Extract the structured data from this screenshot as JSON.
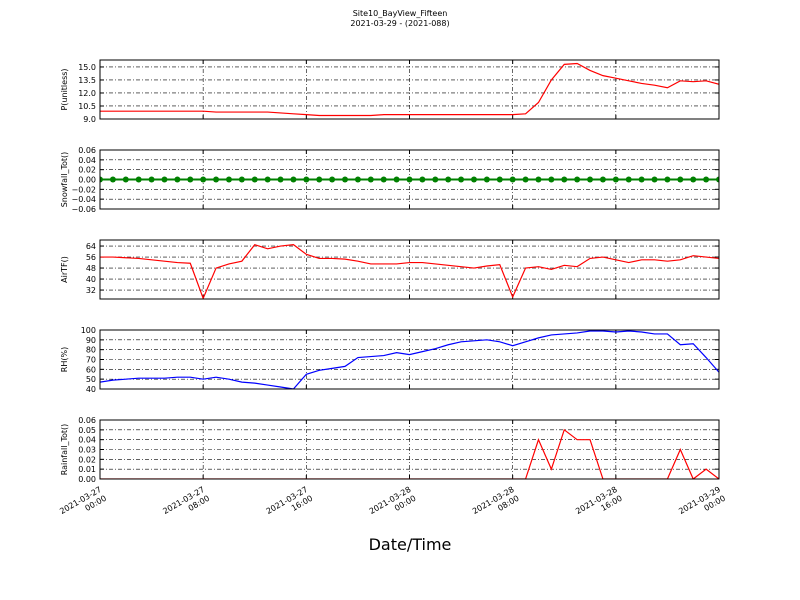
{
  "chart_data": [
    {
      "type": "line",
      "title": "Site10_BayView_Fifteen",
      "subtitle": "2021-03-29 - (2021-088)",
      "ylabel": "P(unitless)",
      "grid": true,
      "x": [
        "2021-03-27 00:00",
        "2021-03-27 01:00",
        "2021-03-27 02:00",
        "2021-03-27 03:00",
        "2021-03-27 04:00",
        "2021-03-27 05:00",
        "2021-03-27 06:00",
        "2021-03-27 07:00",
        "2021-03-27 08:00",
        "2021-03-27 09:00",
        "2021-03-27 10:00",
        "2021-03-27 11:00",
        "2021-03-27 12:00",
        "2021-03-27 13:00",
        "2021-03-27 14:00",
        "2021-03-27 15:00",
        "2021-03-27 16:00",
        "2021-03-27 17:00",
        "2021-03-27 18:00",
        "2021-03-27 19:00",
        "2021-03-27 20:00",
        "2021-03-27 21:00",
        "2021-03-27 22:00",
        "2021-03-27 23:00",
        "2021-03-28 00:00",
        "2021-03-28 01:00",
        "2021-03-28 02:00",
        "2021-03-28 03:00",
        "2021-03-28 04:00",
        "2021-03-28 05:00",
        "2021-03-28 06:00",
        "2021-03-28 07:00",
        "2021-03-28 08:00",
        "2021-03-28 09:00",
        "2021-03-28 10:00",
        "2021-03-28 11:00",
        "2021-03-28 12:00",
        "2021-03-28 13:00",
        "2021-03-28 14:00",
        "2021-03-28 15:00",
        "2021-03-28 16:00",
        "2021-03-28 17:00",
        "2021-03-28 18:00",
        "2021-03-28 19:00",
        "2021-03-28 20:00",
        "2021-03-28 21:00",
        "2021-03-28 22:00",
        "2021-03-28 23:00",
        "2021-03-29 00:00"
      ],
      "series": [
        {
          "color": "#ff0000",
          "values": [
            9.9,
            9.9,
            9.9,
            9.9,
            9.9,
            9.9,
            9.9,
            9.9,
            9.9,
            9.8,
            9.8,
            9.8,
            9.8,
            9.8,
            9.7,
            9.6,
            9.5,
            9.4,
            9.4,
            9.4,
            9.4,
            9.4,
            9.5,
            9.5,
            9.5,
            9.5,
            9.5,
            9.5,
            9.5,
            9.5,
            9.5,
            9.5,
            9.5,
            9.6,
            10.9,
            13.5,
            15.3,
            15.4,
            14.6,
            14.0,
            13.7,
            13.4,
            13.1,
            12.9,
            12.6,
            13.4,
            13.3,
            13.4,
            13.0
          ]
        }
      ],
      "xlim": [
        "2021-03-27 00:00",
        "2021-03-29 00:00"
      ],
      "xticks": [
        "2021-03-27 00:00",
        "2021-03-27 08:00",
        "2021-03-27 16:00",
        "2021-03-28 00:00",
        "2021-03-28 08:00",
        "2021-03-28 16:00",
        "2021-03-29 00:00"
      ],
      "ylim": [
        9,
        15.8
      ],
      "yticks": [
        {
          "value": 9,
          "label": "9.0"
        },
        10.5,
        {
          "value": 12,
          "label": "12.0"
        },
        13.5,
        {
          "value": 15,
          "label": "15.0"
        }
      ]
    },
    {
      "type": "line",
      "ylabel": "Snowfall_Tot()",
      "grid": true,
      "markers": true,
      "x": [
        "2021-03-27 00:00",
        "2021-03-27 01:00",
        "2021-03-27 02:00",
        "2021-03-27 03:00",
        "2021-03-27 04:00",
        "2021-03-27 05:00",
        "2021-03-27 06:00",
        "2021-03-27 07:00",
        "2021-03-27 08:00",
        "2021-03-27 09:00",
        "2021-03-27 10:00",
        "2021-03-27 11:00",
        "2021-03-27 12:00",
        "2021-03-27 13:00",
        "2021-03-27 14:00",
        "2021-03-27 15:00",
        "2021-03-27 16:00",
        "2021-03-27 17:00",
        "2021-03-27 18:00",
        "2021-03-27 19:00",
        "2021-03-27 20:00",
        "2021-03-27 21:00",
        "2021-03-27 22:00",
        "2021-03-27 23:00",
        "2021-03-28 00:00",
        "2021-03-28 01:00",
        "2021-03-28 02:00",
        "2021-03-28 03:00",
        "2021-03-28 04:00",
        "2021-03-28 05:00",
        "2021-03-28 06:00",
        "2021-03-28 07:00",
        "2021-03-28 08:00",
        "2021-03-28 09:00",
        "2021-03-28 10:00",
        "2021-03-28 11:00",
        "2021-03-28 12:00",
        "2021-03-28 13:00",
        "2021-03-28 14:00",
        "2021-03-28 15:00",
        "2021-03-28 16:00",
        "2021-03-28 17:00",
        "2021-03-28 18:00",
        "2021-03-28 19:00",
        "2021-03-28 20:00",
        "2021-03-28 21:00",
        "2021-03-28 22:00",
        "2021-03-28 23:00",
        "2021-03-29 00:00"
      ],
      "series": [
        {
          "color": "#008000",
          "values": [
            0,
            0,
            0,
            0,
            0,
            0,
            0,
            0,
            0,
            0,
            0,
            0,
            0,
            0,
            0,
            0,
            0,
            0,
            0,
            0,
            0,
            0,
            0,
            0,
            0,
            0,
            0,
            0,
            0,
            0,
            0,
            0,
            0,
            0,
            0,
            0,
            0,
            0,
            0,
            0,
            0,
            0,
            0,
            0,
            0,
            0,
            0,
            0,
            0
          ]
        }
      ],
      "xlim": [
        "2021-03-27 00:00",
        "2021-03-29 00:00"
      ],
      "xticks": [
        "2021-03-27 00:00",
        "2021-03-27 08:00",
        "2021-03-27 16:00",
        "2021-03-28 00:00",
        "2021-03-28 08:00",
        "2021-03-28 16:00",
        "2021-03-29 00:00"
      ],
      "ylim": [
        -0.06,
        0.06
      ],
      "yticks": [
        {
          "value": -0.06,
          "label": "−0.06"
        },
        {
          "value": -0.04,
          "label": "−0.04"
        },
        {
          "value": -0.02,
          "label": "−0.02"
        },
        {
          "value": 0,
          "label": "0.00"
        },
        0.02,
        0.04,
        0.06
      ]
    },
    {
      "type": "line",
      "ylabel": "AirTF()",
      "grid": true,
      "x": [
        "2021-03-27 00:00",
        "2021-03-27 01:00",
        "2021-03-27 02:00",
        "2021-03-27 03:00",
        "2021-03-27 04:00",
        "2021-03-27 05:00",
        "2021-03-27 06:00",
        "2021-03-27 07:00",
        "2021-03-27 08:00",
        "2021-03-27 09:00",
        "2021-03-27 10:00",
        "2021-03-27 11:00",
        "2021-03-27 12:00",
        "2021-03-27 13:00",
        "2021-03-27 14:00",
        "2021-03-27 15:00",
        "2021-03-27 16:00",
        "2021-03-27 17:00",
        "2021-03-27 18:00",
        "2021-03-27 19:00",
        "2021-03-27 20:00",
        "2021-03-27 21:00",
        "2021-03-27 22:00",
        "2021-03-27 23:00",
        "2021-03-28 00:00",
        "2021-03-28 01:00",
        "2021-03-28 02:00",
        "2021-03-28 03:00",
        "2021-03-28 04:00",
        "2021-03-28 05:00",
        "2021-03-28 06:00",
        "2021-03-28 07:00",
        "2021-03-28 08:00",
        "2021-03-28 09:00",
        "2021-03-28 10:00",
        "2021-03-28 11:00",
        "2021-03-28 12:00",
        "2021-03-28 13:00",
        "2021-03-28 14:00",
        "2021-03-28 15:00",
        "2021-03-28 16:00",
        "2021-03-28 17:00",
        "2021-03-28 18:00",
        "2021-03-28 19:00",
        "2021-03-28 20:00",
        "2021-03-28 21:00",
        "2021-03-28 22:00",
        "2021-03-28 23:00",
        "2021-03-29 00:00"
      ],
      "series": [
        {
          "color": "#ff0000",
          "values": [
            56,
            56,
            55.5,
            55,
            54,
            53,
            52,
            51.5,
            26,
            48,
            51,
            53,
            65,
            62,
            64,
            65,
            58,
            55,
            55,
            54.5,
            53,
            51,
            51,
            51,
            52,
            52,
            51,
            50,
            49,
            48,
            49.5,
            50.5,
            27,
            48,
            49,
            47,
            50,
            49,
            55,
            56,
            54,
            52,
            54,
            54,
            53,
            54,
            57,
            56,
            55
          ]
        }
      ],
      "xlim": [
        "2021-03-27 00:00",
        "2021-03-29 00:00"
      ],
      "xticks": [
        "2021-03-27 00:00",
        "2021-03-27 08:00",
        "2021-03-27 16:00",
        "2021-03-28 00:00",
        "2021-03-28 08:00",
        "2021-03-28 16:00",
        "2021-03-29 00:00"
      ],
      "ylim": [
        25.5,
        68.4
      ],
      "yticks": [
        32,
        40,
        48,
        56,
        64
      ]
    },
    {
      "type": "line",
      "ylabel": "RH(%)",
      "grid": true,
      "x": [
        "2021-03-27 00:00",
        "2021-03-27 01:00",
        "2021-03-27 02:00",
        "2021-03-27 03:00",
        "2021-03-27 04:00",
        "2021-03-27 05:00",
        "2021-03-27 06:00",
        "2021-03-27 07:00",
        "2021-03-27 08:00",
        "2021-03-27 09:00",
        "2021-03-27 10:00",
        "2021-03-27 11:00",
        "2021-03-27 12:00",
        "2021-03-27 13:00",
        "2021-03-27 14:00",
        "2021-03-27 15:00",
        "2021-03-27 16:00",
        "2021-03-27 17:00",
        "2021-03-27 18:00",
        "2021-03-27 19:00",
        "2021-03-27 20:00",
        "2021-03-27 21:00",
        "2021-03-27 22:00",
        "2021-03-27 23:00",
        "2021-03-28 00:00",
        "2021-03-28 01:00",
        "2021-03-28 02:00",
        "2021-03-28 03:00",
        "2021-03-28 04:00",
        "2021-03-28 05:00",
        "2021-03-28 06:00",
        "2021-03-28 07:00",
        "2021-03-28 08:00",
        "2021-03-28 09:00",
        "2021-03-28 10:00",
        "2021-03-28 11:00",
        "2021-03-28 12:00",
        "2021-03-28 13:00",
        "2021-03-28 14:00",
        "2021-03-28 15:00",
        "2021-03-28 16:00",
        "2021-03-28 17:00",
        "2021-03-28 18:00",
        "2021-03-28 19:00",
        "2021-03-28 20:00",
        "2021-03-28 21:00",
        "2021-03-28 22:00",
        "2021-03-28 23:00",
        "2021-03-29 00:00"
      ],
      "series": [
        {
          "color": "#0000ff",
          "values": [
            47,
            49,
            50,
            51,
            51,
            51,
            52,
            52,
            50,
            52,
            50,
            47,
            46,
            44,
            42,
            40,
            55,
            59,
            61,
            63,
            72,
            73,
            74,
            77,
            75,
            78,
            81,
            85,
            88,
            89,
            90,
            88,
            84,
            88,
            92,
            95,
            96,
            97,
            99,
            99,
            98,
            99,
            98,
            96,
            96,
            85,
            86,
            72,
            57
          ]
        }
      ],
      "xlim": [
        "2021-03-27 00:00",
        "2021-03-29 00:00"
      ],
      "xticks": [
        "2021-03-27 00:00",
        "2021-03-27 08:00",
        "2021-03-27 16:00",
        "2021-03-28 00:00",
        "2021-03-28 08:00",
        "2021-03-28 16:00",
        "2021-03-29 00:00"
      ],
      "ylim": [
        40,
        100
      ],
      "yticks": [
        40,
        50,
        60,
        70,
        80,
        90,
        100
      ]
    },
    {
      "type": "line",
      "ylabel": "Rainfall_Tot()",
      "xlabel": "Date/Time",
      "grid": true,
      "x": [
        "2021-03-27 00:00",
        "2021-03-27 01:00",
        "2021-03-27 02:00",
        "2021-03-27 03:00",
        "2021-03-27 04:00",
        "2021-03-27 05:00",
        "2021-03-27 06:00",
        "2021-03-27 07:00",
        "2021-03-27 08:00",
        "2021-03-27 09:00",
        "2021-03-27 10:00",
        "2021-03-27 11:00",
        "2021-03-27 12:00",
        "2021-03-27 13:00",
        "2021-03-27 14:00",
        "2021-03-27 15:00",
        "2021-03-27 16:00",
        "2021-03-27 17:00",
        "2021-03-27 18:00",
        "2021-03-27 19:00",
        "2021-03-27 20:00",
        "2021-03-27 21:00",
        "2021-03-27 22:00",
        "2021-03-27 23:00",
        "2021-03-28 00:00",
        "2021-03-28 01:00",
        "2021-03-28 02:00",
        "2021-03-28 03:00",
        "2021-03-28 04:00",
        "2021-03-28 05:00",
        "2021-03-28 06:00",
        "2021-03-28 07:00",
        "2021-03-28 08:00",
        "2021-03-28 09:00",
        "2021-03-28 10:00",
        "2021-03-28 11:00",
        "2021-03-28 12:00",
        "2021-03-28 13:00",
        "2021-03-28 14:00",
        "2021-03-28 15:00",
        "2021-03-28 16:00",
        "2021-03-28 17:00",
        "2021-03-28 18:00",
        "2021-03-28 19:00",
        "2021-03-28 20:00",
        "2021-03-28 21:00",
        "2021-03-28 22:00",
        "2021-03-28 23:00",
        "2021-03-29 00:00"
      ],
      "series": [
        {
          "color": "#ff0000",
          "values": [
            0,
            0,
            0,
            0,
            0,
            0,
            0,
            0,
            0,
            0,
            0,
            0,
            0,
            0,
            0,
            0,
            0,
            0,
            0,
            0,
            0,
            0,
            0,
            0,
            0,
            0,
            0,
            0,
            0,
            0,
            0,
            0,
            0,
            0,
            0.04,
            0.01,
            0.05,
            0.04,
            0.04,
            0,
            0,
            0,
            0,
            0,
            0,
            0.03,
            0,
            0.01,
            0
          ]
        }
      ],
      "xlim": [
        "2021-03-27 00:00",
        "2021-03-29 00:00"
      ],
      "xticks": [
        "2021-03-27 00:00",
        "2021-03-27 08:00",
        "2021-03-27 16:00",
        "2021-03-28 00:00",
        "2021-03-28 08:00",
        "2021-03-28 16:00",
        "2021-03-29 00:00"
      ],
      "ylim": [
        0,
        0.06
      ],
      "yticks": [
        {
          "value": 0,
          "label": "0.00"
        },
        0.01,
        0.02,
        0.03,
        0.04,
        0.05,
        0.06
      ]
    }
  ]
}
